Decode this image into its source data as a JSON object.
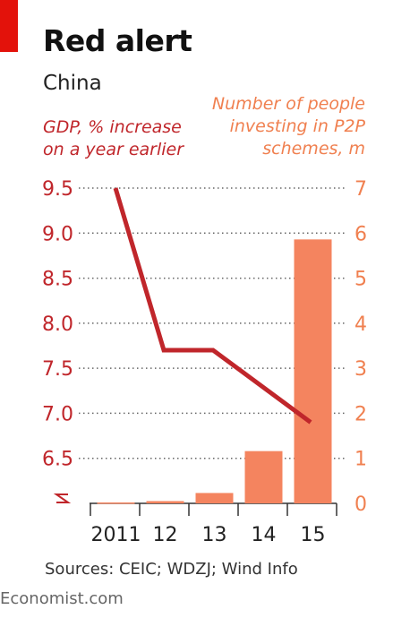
{
  "header": {
    "title": "Red alert",
    "subtitle": "China"
  },
  "source": "Sources: CEIC; WDZJ; Wind Info",
  "footer": "Economist.com",
  "chart_data": {
    "type": "bar+line",
    "categories": [
      "2011",
      "12",
      "13",
      "14",
      "15"
    ],
    "series": [
      {
        "name": "Number of people investing in P2P schemes, m",
        "type": "bar",
        "axis": "right",
        "color": "#f4845f",
        "values": [
          0.02,
          0.05,
          0.23,
          1.16,
          5.86
        ]
      },
      {
        "name": "GDP, % increase on a year earlier",
        "type": "line",
        "axis": "left",
        "color": "#c0262b",
        "values": [
          9.5,
          7.7,
          7.7,
          null,
          6.9
        ]
      }
    ],
    "left_axis": {
      "label": "GDP, % increase\non a year earlier",
      "ticks": [
        "9.5",
        "9.0",
        "8.5",
        "8.0",
        "7.5",
        "7.0",
        "6.5"
      ],
      "range": [
        6.0,
        9.5
      ],
      "broken": true,
      "color": "#c0262b"
    },
    "right_axis": {
      "label": "Number of people\ninvesting in P2P\nschemes, m",
      "ticks": [
        "7",
        "6",
        "5",
        "4",
        "3",
        "2",
        "1",
        "0"
      ],
      "range": [
        0,
        7
      ],
      "color": "#f08050"
    },
    "grid": true
  }
}
